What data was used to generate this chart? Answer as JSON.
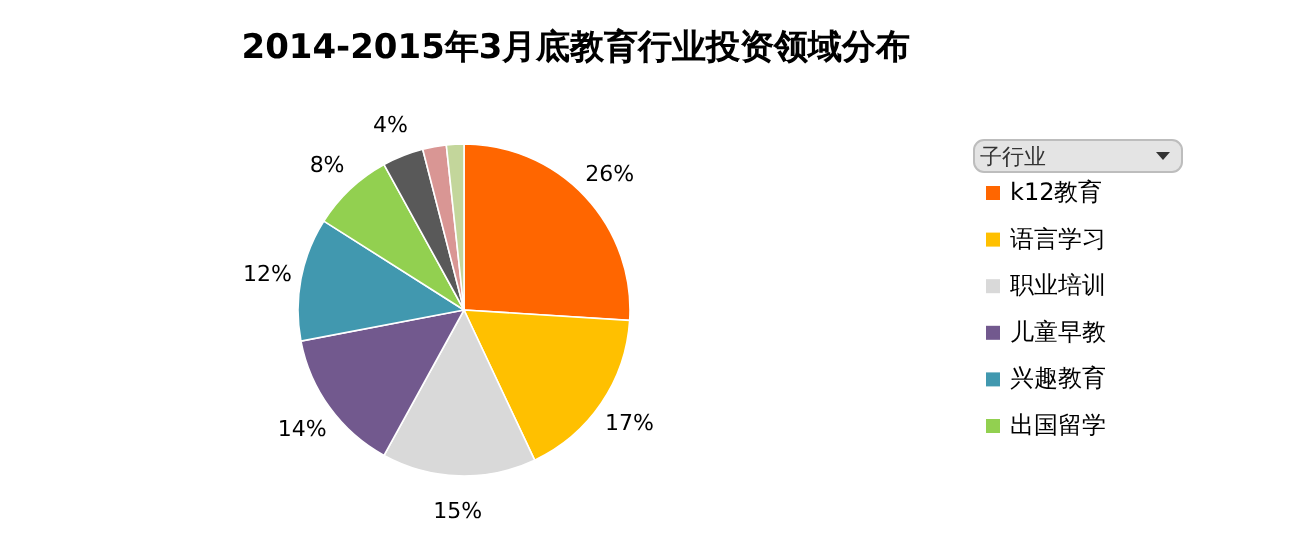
{
  "chart_data": {
    "type": "pie",
    "title": "2014-2015年3月底教育行业投资领域分布",
    "legend_title": "子行业",
    "legend": "right",
    "categories": [
      "k12教育",
      "语言学习",
      "职业培训",
      "儿童早教",
      "兴趣教育",
      "出国留学",
      null,
      null,
      null
    ],
    "values": [
      26,
      17,
      15,
      14,
      12,
      8,
      4,
      2.3,
      1.7
    ],
    "value_labels": [
      "26%",
      "17%",
      "15%",
      "14%",
      "12%",
      "8%",
      "4%",
      null,
      null
    ],
    "colors": [
      "#ff6600",
      "#ffc000",
      "#d9d9d9",
      "#72598e",
      "#4198af",
      "#92d050",
      "#595959",
      "#d99694",
      "#c3d69b"
    ]
  }
}
